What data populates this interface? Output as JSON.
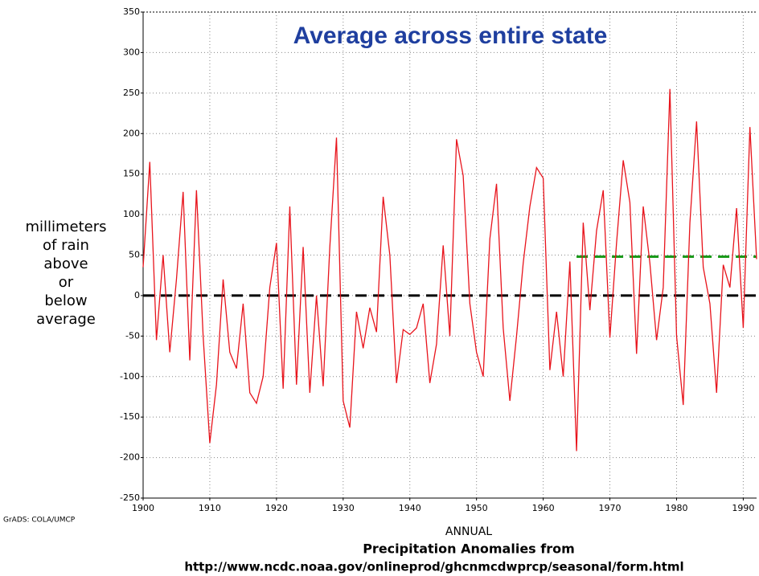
{
  "chart_data": {
    "type": "line",
    "title": "Average across entire state",
    "ylabel": [
      "millimeters",
      "of rain",
      "above",
      "or",
      "below",
      "average"
    ],
    "xlabel": "ANNUAL",
    "caption": [
      "Precipitation Anomalies from",
      "http://www.ncdc.noaa.gov/onlineprod/ghcnmcdwprcp/seasonal/form.html"
    ],
    "credit": "GrADS: COLA/UMCP",
    "x": [
      1900,
      1901,
      1902,
      1903,
      1904,
      1905,
      1906,
      1907,
      1908,
      1909,
      1910,
      1911,
      1912,
      1913,
      1914,
      1915,
      1916,
      1917,
      1918,
      1919,
      1920,
      1921,
      1922,
      1923,
      1924,
      1925,
      1926,
      1927,
      1928,
      1929,
      1930,
      1931,
      1932,
      1933,
      1934,
      1935,
      1936,
      1937,
      1938,
      1939,
      1940,
      1941,
      1942,
      1943,
      1944,
      1945,
      1946,
      1947,
      1948,
      1949,
      1950,
      1951,
      1952,
      1953,
      1954,
      1955,
      1956,
      1957,
      1958,
      1959,
      1960,
      1961,
      1962,
      1963,
      1964,
      1965,
      1966,
      1967,
      1968,
      1969,
      1970,
      1971,
      1972,
      1973,
      1974,
      1975,
      1976,
      1977,
      1978,
      1979,
      1980,
      1981,
      1982,
      1983,
      1984,
      1985,
      1986,
      1987,
      1988,
      1989,
      1990,
      1991,
      1992
    ],
    "series": [
      {
        "color": "#e8141c",
        "values": [
          35,
          165,
          -55,
          50,
          -70,
          20,
          128,
          -80,
          130,
          -50,
          -182,
          -110,
          20,
          -70,
          -90,
          -10,
          -120,
          -133,
          -100,
          10,
          65,
          -115,
          110,
          -110,
          60,
          -120,
          0,
          -112,
          60,
          195,
          -130,
          -163,
          -20,
          -65,
          -15,
          -45,
          122,
          50,
          -108,
          -42,
          -48,
          -40,
          -10,
          -108,
          -60,
          62,
          -50,
          193,
          148,
          -10,
          -70,
          -100,
          70,
          138,
          -40,
          -130,
          -50,
          40,
          110,
          158,
          145,
          -92,
          -20,
          -100,
          42,
          -192,
          90,
          -18,
          80,
          130,
          -52,
          65,
          167,
          115,
          -72,
          110,
          40,
          -55,
          10,
          255,
          -50,
          -135,
          90,
          215,
          35,
          -10,
          -120,
          38,
          10,
          108,
          -40,
          208,
          45
        ]
      }
    ],
    "reference_lines": [
      {
        "value": 0,
        "color": "#000000",
        "x": [
          1900,
          1992
        ]
      },
      {
        "value": 48,
        "color": "#1a9a1a",
        "x": [
          1965,
          1992
        ]
      }
    ],
    "xlim": [
      1900,
      1992
    ],
    "ylim": [
      -250,
      350
    ],
    "xticks": [
      1900,
      1910,
      1920,
      1930,
      1940,
      1950,
      1960,
      1970,
      1980,
      1990
    ],
    "yticks": [
      -250,
      -200,
      -150,
      -100,
      -50,
      0,
      50,
      100,
      150,
      200,
      250,
      300,
      350
    ],
    "grid": true
  }
}
